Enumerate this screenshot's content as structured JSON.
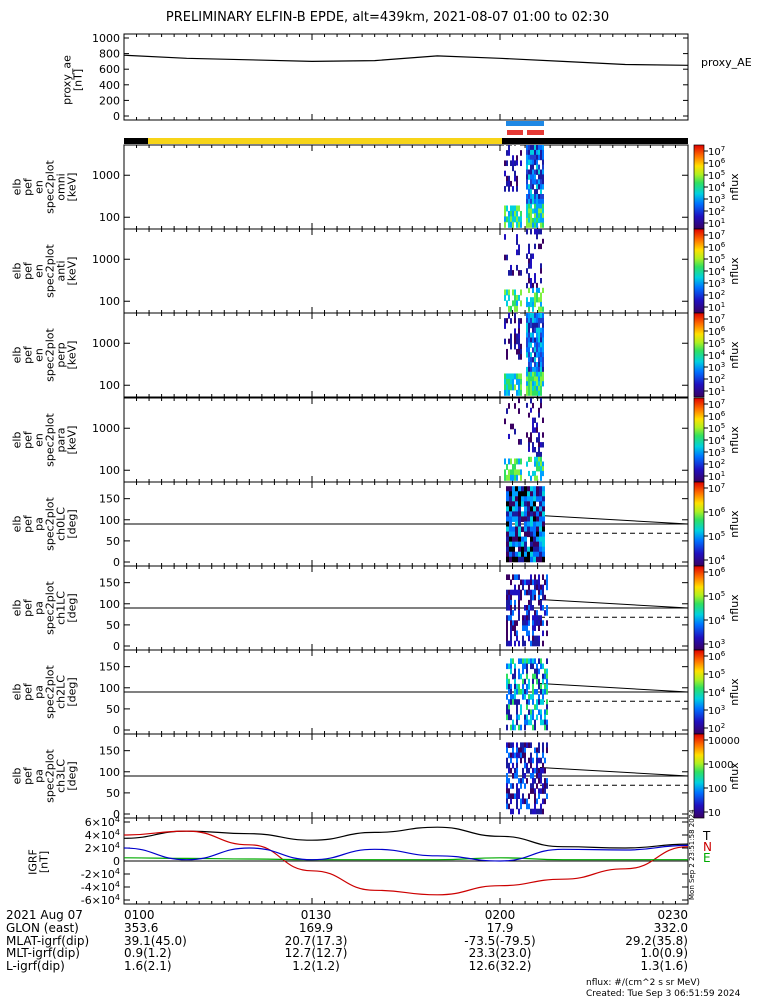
{
  "title": "PRELIMINARY ELFIN-B EPDE, alt=439km, 2021-08-07 01:00 to 02:30",
  "panels": {
    "proxy_ae": {
      "ylabel_lines": [
        "proxy_ae",
        "[nT]"
      ],
      "ticks": [
        "1000",
        "800",
        "600",
        "400",
        "200",
        "0"
      ],
      "legend": "proxy_AE"
    },
    "energy_panels": [
      {
        "ylabel_lines": [
          "elb",
          "pef",
          "en",
          "spec2plot",
          "omni",
          "[keV]"
        ],
        "ticks": [
          "1000",
          "100"
        ],
        "cbar_ticks": [
          "10^7",
          "10^6",
          "10^5",
          "10^4",
          "10^3",
          "10^2",
          "10^1"
        ],
        "cbar_label": "nflux"
      },
      {
        "ylabel_lines": [
          "elb",
          "pef",
          "en",
          "spec2plot",
          "anti",
          "[keV]"
        ],
        "ticks": [
          "1000",
          "100"
        ],
        "cbar_ticks": [
          "10^7",
          "10^6",
          "10^5",
          "10^4",
          "10^3",
          "10^2",
          "10^1"
        ],
        "cbar_label": "nflux"
      },
      {
        "ylabel_lines": [
          "elb",
          "pef",
          "en",
          "spec2plot",
          "perp",
          "[keV]"
        ],
        "ticks": [
          "1000",
          "100"
        ],
        "cbar_ticks": [
          "10^7",
          "10^6",
          "10^5",
          "10^4",
          "10^3",
          "10^2",
          "10^1"
        ],
        "cbar_label": "nflux"
      },
      {
        "ylabel_lines": [
          "elb",
          "pef",
          "en",
          "spec2plot",
          "para",
          "[keV]"
        ],
        "ticks": [
          "1000",
          "100"
        ],
        "cbar_ticks": [
          "10^7",
          "10^6",
          "10^5",
          "10^4",
          "10^3",
          "10^2",
          "10^1"
        ],
        "cbar_label": "nflux"
      }
    ],
    "pitch_panels": [
      {
        "ylabel_lines": [
          "elb",
          "pef",
          "pa",
          "spec2plot",
          "ch0LC",
          "[deg]"
        ],
        "ticks": [
          "150",
          "100",
          "50",
          "0"
        ],
        "cbar_ticks": [
          "10^7",
          "10^6",
          "10^5",
          "10^4"
        ],
        "cbar_label": "nflux"
      },
      {
        "ylabel_lines": [
          "elb",
          "pef",
          "pa",
          "spec2plot",
          "ch1LC",
          "[deg]"
        ],
        "ticks": [
          "150",
          "100",
          "50",
          "0"
        ],
        "cbar_ticks": [
          "10^6",
          "10^5",
          "10^4",
          "10^3"
        ],
        "cbar_label": "nflux"
      },
      {
        "ylabel_lines": [
          "elb",
          "pef",
          "pa",
          "spec2plot",
          "ch2LC",
          "[deg]"
        ],
        "ticks": [
          "150",
          "100",
          "50",
          "0"
        ],
        "cbar_ticks": [
          "10^6",
          "10^5",
          "10^4",
          "10^3",
          "10^2"
        ],
        "cbar_label": "nflux"
      },
      {
        "ylabel_lines": [
          "elb",
          "pef",
          "pa",
          "spec2plot",
          "ch3LC",
          "[deg]"
        ],
        "ticks": [
          "150",
          "100",
          "50",
          "0"
        ],
        "cbar_ticks": [
          "10000",
          "1000",
          "100",
          "10"
        ],
        "cbar_label": "nflux"
      }
    ],
    "igrf": {
      "ylabel_lines": [
        "IGRF",
        "[nT]"
      ],
      "ticks": [
        "6×10^4",
        "4×10^4",
        "2×10^4",
        "0",
        "-2×10^4",
        "-4×10^4",
        "-6×10^4"
      ],
      "legend": [
        "T",
        "N",
        "E"
      ],
      "side_note": "Mon Sep 2 23:51:58 2024"
    }
  },
  "ephemeris": {
    "date_label": "2021 Aug 07",
    "times": [
      "0100",
      "0130",
      "0200",
      "0230"
    ],
    "rows": [
      {
        "label": "GLON (east)",
        "values": [
          "353.6",
          "169.9",
          "17.9",
          "332.0"
        ]
      },
      {
        "label": "MLAT-igrf(dip)",
        "values": [
          "39.1(45.0)",
          "20.7(17.3)",
          "-73.5(-79.5)",
          "29.2(35.8)"
        ]
      },
      {
        "label": "MLT-igrf(dip)",
        "values": [
          "0.9(1.2)",
          "12.7(12.7)",
          "23.3(23.0)",
          "1.0(0.9)"
        ]
      },
      {
        "label": "L-igrf(dip)",
        "values": [
          "1.6(2.1)",
          "1.2(1.2)",
          "12.6(32.2)",
          "1.3(1.6)"
        ]
      }
    ]
  },
  "footer": {
    "units": "nflux: #/(cm^2 s sr MeV)",
    "created": "Created: Tue Sep  3 06:51:59 2024"
  },
  "chart_data": [
    {
      "type": "line",
      "title": "proxy_AE",
      "x_time_range": [
        "01:00",
        "02:30"
      ],
      "ylim": [
        0,
        1000
      ],
      "series": [
        {
          "name": "proxy_AE",
          "x": [
            "01:00",
            "01:10",
            "01:20",
            "01:30",
            "01:40",
            "01:50",
            "02:00",
            "02:10",
            "02:20",
            "02:30"
          ],
          "values": [
            780,
            740,
            720,
            700,
            710,
            770,
            740,
            700,
            660,
            650
          ]
        }
      ]
    },
    {
      "type": "line",
      "title": "IGRF",
      "x_time_range": [
        "01:00",
        "02:30"
      ],
      "ylim": [
        -60000,
        60000
      ],
      "series": [
        {
          "name": "T",
          "color": "#000000",
          "x": [
            "01:00",
            "01:10",
            "01:20",
            "01:30",
            "01:40",
            "01:50",
            "02:00",
            "02:10",
            "02:20",
            "02:30"
          ],
          "values": [
            35000,
            46000,
            42000,
            32000,
            44000,
            52000,
            38000,
            22000,
            20000,
            26000
          ]
        },
        {
          "name": "N",
          "color": "#cc0000",
          "x": [
            "01:00",
            "01:10",
            "01:20",
            "01:30",
            "01:40",
            "01:50",
            "02:00",
            "02:10",
            "02:20",
            "02:30"
          ],
          "values": [
            40000,
            46000,
            25000,
            -15000,
            -45000,
            -52000,
            -38000,
            -28000,
            -12000,
            22000
          ]
        },
        {
          "name": "E",
          "color": "#00aa00",
          "x": [
            "01:00",
            "01:10",
            "01:20",
            "01:30",
            "01:40",
            "01:50",
            "02:00",
            "02:10",
            "02:20",
            "02:30"
          ],
          "values": [
            5000,
            4000,
            3000,
            2000,
            2000,
            2000,
            5000,
            2000,
            2000,
            2000
          ]
        },
        {
          "name": "",
          "color": "#0000cc",
          "x": [
            "01:00",
            "01:10",
            "01:20",
            "01:30",
            "01:40",
            "01:50",
            "02:00",
            "02:10",
            "02:20",
            "02:30"
          ],
          "values": [
            20000,
            2000,
            20000,
            2000,
            18000,
            8000,
            0,
            18000,
            17000,
            24000
          ]
        }
      ]
    }
  ]
}
